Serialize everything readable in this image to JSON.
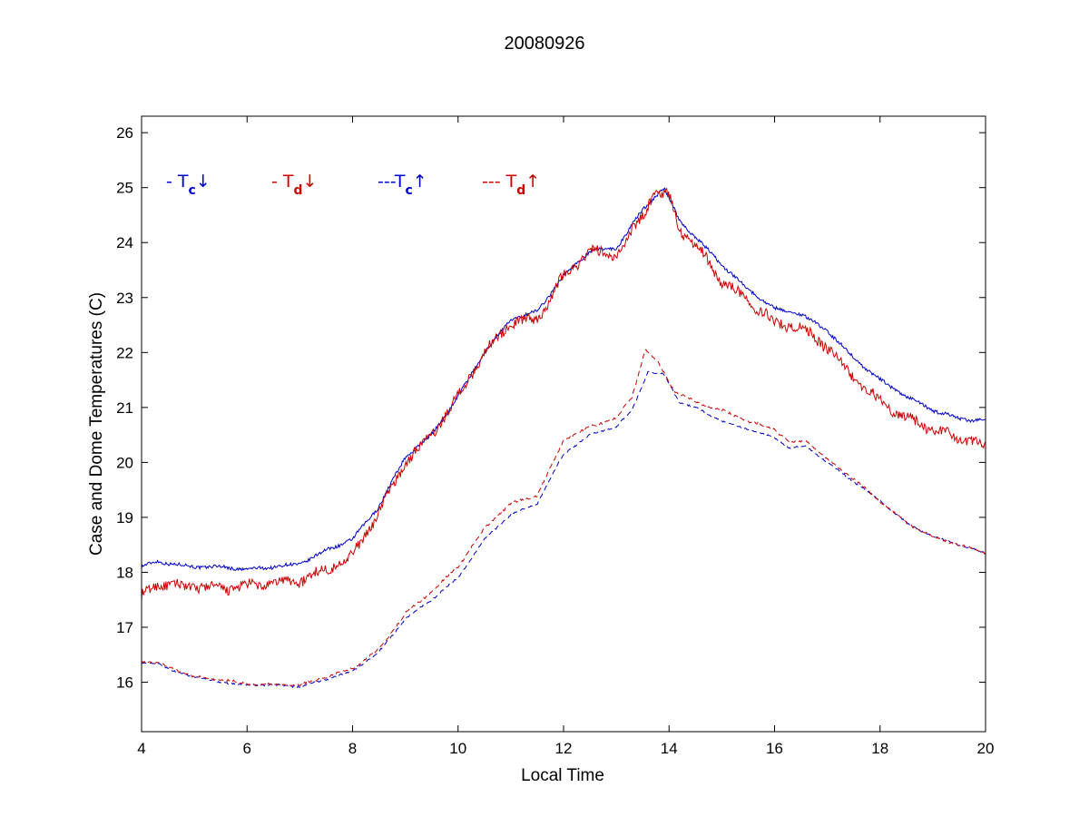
{
  "chart_data": {
    "type": "line",
    "title": "20080926",
    "xlabel": "Local Time",
    "ylabel": "Case and Dome Temperatures (C)",
    "xlim": [
      4,
      20
    ],
    "ylim": [
      15.1,
      26.3
    ],
    "xticks": [
      4,
      6,
      8,
      10,
      12,
      14,
      16,
      18,
      20
    ],
    "yticks": [
      16,
      17,
      18,
      19,
      20,
      21,
      22,
      23,
      24,
      25,
      26
    ],
    "grid": false,
    "legend_position": "top-left inside plot",
    "legend": [
      {
        "prefix": "- T",
        "sub": "c",
        "arrow": "↓",
        "color": "#0000cc"
      },
      {
        "prefix": "- T",
        "sub": "d",
        "arrow": "↓",
        "color": "#cc0000"
      },
      {
        "prefix": "---T",
        "sub": "c",
        "arrow": "↑",
        "color": "#0000cc"
      },
      {
        "prefix": "--- T",
        "sub": "d",
        "arrow": "↑",
        "color": "#cc0000"
      }
    ],
    "series": [
      {
        "color": "#0000cc",
        "style": "solid",
        "x": [
          4.0,
          4.3,
          4.6,
          5.0,
          5.5,
          6.0,
          6.5,
          7.0,
          7.5,
          8.0,
          8.5,
          9.0,
          9.5,
          10.0,
          10.5,
          11.0,
          11.5,
          12.0,
          12.5,
          13.0,
          13.5,
          13.9,
          14.2,
          14.6,
          15.0,
          15.5,
          16.0,
          16.5,
          17.0,
          17.5,
          18.0,
          18.5,
          19.0,
          19.5,
          20.0
        ],
        "y": [
          18.1,
          18.2,
          18.15,
          18.1,
          18.1,
          18.05,
          18.1,
          18.15,
          18.4,
          18.6,
          19.2,
          20.1,
          20.5,
          21.2,
          22.0,
          22.6,
          22.75,
          23.4,
          23.85,
          23.9,
          24.6,
          25.0,
          24.4,
          24.0,
          23.6,
          23.15,
          22.8,
          22.7,
          22.4,
          21.9,
          21.5,
          21.2,
          20.95,
          20.8,
          20.75
        ],
        "noise": 0.03
      },
      {
        "color": "#cc0000",
        "style": "solid",
        "x": [
          4.0,
          4.3,
          4.6,
          5.0,
          5.5,
          6.0,
          6.5,
          7.0,
          7.5,
          8.0,
          8.5,
          9.0,
          9.5,
          10.0,
          10.5,
          11.0,
          11.5,
          12.0,
          12.5,
          13.0,
          13.5,
          13.7,
          14.0,
          14.2,
          14.6,
          15.0,
          15.5,
          16.0,
          16.5,
          17.0,
          17.5,
          18.0,
          18.5,
          19.0,
          19.5,
          20.0
        ],
        "y": [
          17.55,
          17.8,
          17.75,
          17.75,
          17.7,
          17.75,
          17.8,
          17.85,
          18.05,
          18.3,
          19.1,
          20.0,
          20.5,
          21.2,
          22.0,
          22.55,
          22.6,
          23.4,
          23.85,
          23.75,
          24.5,
          24.9,
          24.85,
          24.25,
          23.85,
          23.3,
          22.95,
          22.55,
          22.45,
          22.1,
          21.55,
          21.1,
          20.8,
          20.6,
          20.45,
          20.3
        ],
        "noise": 0.09
      },
      {
        "color": "#0000cc",
        "style": "dashed",
        "x": [
          4.0,
          4.3,
          4.6,
          5.0,
          5.5,
          6.0,
          6.5,
          7.0,
          7.5,
          8.0,
          8.5,
          9.0,
          9.5,
          10.0,
          10.5,
          11.0,
          11.5,
          12.0,
          12.5,
          13.0,
          13.3,
          13.6,
          13.9,
          14.2,
          14.6,
          15.0,
          15.5,
          16.0,
          16.3,
          16.6,
          17.0,
          17.5,
          18.0,
          18.5,
          19.0,
          19.5,
          20.0
        ],
        "y": [
          16.35,
          16.35,
          16.2,
          16.1,
          16.0,
          15.95,
          15.95,
          15.92,
          16.05,
          16.2,
          16.55,
          17.15,
          17.5,
          17.9,
          18.6,
          19.05,
          19.25,
          20.15,
          20.5,
          20.65,
          20.95,
          21.65,
          21.6,
          21.1,
          20.95,
          20.75,
          20.6,
          20.45,
          20.25,
          20.3,
          20.0,
          19.65,
          19.3,
          18.9,
          18.65,
          18.5,
          18.35
        ],
        "noise": 0.015
      },
      {
        "color": "#cc0000",
        "style": "dashed",
        "x": [
          4.0,
          4.3,
          4.6,
          5.0,
          5.5,
          6.0,
          6.5,
          7.0,
          7.5,
          8.0,
          8.5,
          9.0,
          9.5,
          10.0,
          10.5,
          11.0,
          11.5,
          12.0,
          12.5,
          13.0,
          13.3,
          13.55,
          13.8,
          14.1,
          14.5,
          15.0,
          15.5,
          16.0,
          16.3,
          16.6,
          17.0,
          17.5,
          18.0,
          18.5,
          19.0,
          19.5,
          20.0
        ],
        "y": [
          16.38,
          16.35,
          16.25,
          16.1,
          16.05,
          15.97,
          15.95,
          15.95,
          16.1,
          16.25,
          16.6,
          17.25,
          17.65,
          18.1,
          18.8,
          19.25,
          19.4,
          20.4,
          20.65,
          20.8,
          21.2,
          22.05,
          21.8,
          21.3,
          21.1,
          20.95,
          20.75,
          20.6,
          20.35,
          20.4,
          20.05,
          19.7,
          19.3,
          18.9,
          18.65,
          18.5,
          18.35
        ],
        "noise": 0.02
      }
    ]
  }
}
